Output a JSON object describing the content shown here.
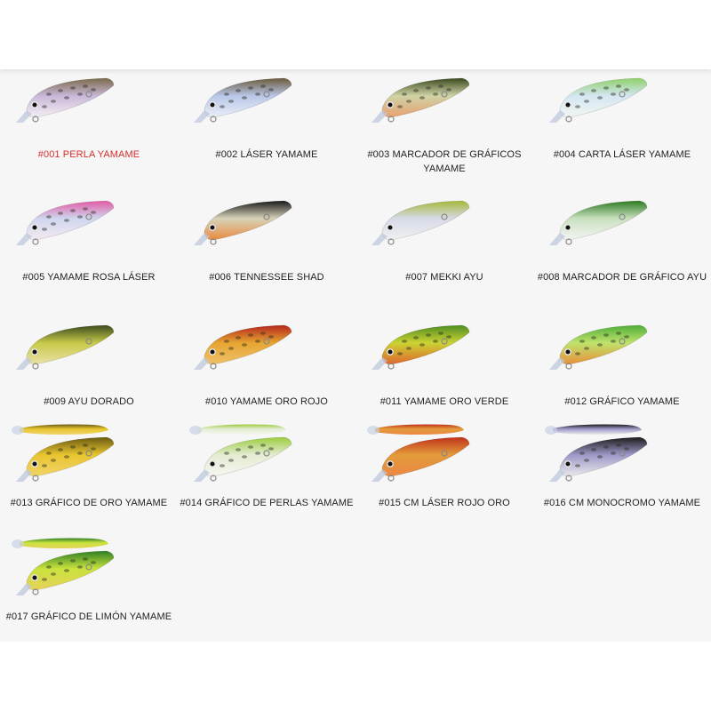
{
  "colors": {
    "active_label": "#d72f2f",
    "label": "#222222",
    "panel_bg": "#f6f6f6"
  },
  "items": [
    {
      "label": "#001 PERLA YAMAME",
      "active": true,
      "top": "#7a6a4a",
      "mid": "#c9b7d8",
      "belly": "#f4eef2",
      "spots": true,
      "rod": false
    },
    {
      "label": "#002 LÁSER YAMAME",
      "active": false,
      "top": "#6b5a3a",
      "mid": "#b8c6e8",
      "belly": "#e9eef6",
      "spots": true,
      "rod": false
    },
    {
      "label": "#003 MARCADOR DE GRÁFICOS YAMAME",
      "active": false,
      "top": "#3a4a1e",
      "mid": "#cfd3a6",
      "belly": "#e8a070",
      "spots": true,
      "rod": false
    },
    {
      "label": "#004 CARTA LÁSER YAMAME",
      "active": false,
      "top": "#8fd06a",
      "mid": "#d4e6f2",
      "belly": "#f2f6f2",
      "spots": true,
      "rod": false
    },
    {
      "label": "#005 YAMAME ROSA LÁSER",
      "active": false,
      "top": "#e35ba6",
      "mid": "#cfd6ee",
      "belly": "#f4eaf0",
      "spots": true,
      "rod": false
    },
    {
      "label": "#006 TENNESSEE SHAD",
      "active": false,
      "top": "#1a1a1a",
      "mid": "#d7d2b8",
      "belly": "#e9893e",
      "spots": false,
      "rod": false
    },
    {
      "label": "#007 MEKKI AYU",
      "active": false,
      "top": "#a7b83a",
      "mid": "#d6dae6",
      "belly": "#f0f0f0",
      "spots": false,
      "rod": false
    },
    {
      "label": "#008 MARCADOR DE GRÁFICO AYU",
      "active": false,
      "top": "#2c7a22",
      "mid": "#c9e0bf",
      "belly": "#f4f4f4",
      "spots": false,
      "rod": false
    },
    {
      "label": "#009 AYU DORADO",
      "active": false,
      "top": "#3b4a1e",
      "mid": "#c7c948",
      "belly": "#e9e2a8",
      "spots": false,
      "rod": false
    },
    {
      "label": "#010 YAMAME ORO ROJO",
      "active": false,
      "top": "#b5271c",
      "mid": "#e6a531",
      "belly": "#f0c06a",
      "spots": true,
      "rod": false
    },
    {
      "label": "#011 YAMAME ORO VERDE",
      "active": false,
      "top": "#4e8d22",
      "mid": "#cbd332",
      "belly": "#e0662f",
      "spots": true,
      "rod": false
    },
    {
      "label": "#012 GRÁFICO YAMAME",
      "active": false,
      "top": "#4fae39",
      "mid": "#bfe36a",
      "belly": "#e98f3c",
      "spots": true,
      "rod": false
    },
    {
      "label": "#013 GRÁFICO DE ORO YAMAME",
      "active": false,
      "top": "#6b5a12",
      "mid": "#e8c52f",
      "belly": "#f0d46a",
      "spots": true,
      "rod": true
    },
    {
      "label": "#014 GRÁFICO DE PERLAS YAMAME",
      "active": false,
      "top": "#9ccc3e",
      "mid": "#e3ecd2",
      "belly": "#f6f6f0",
      "spots": true,
      "rod": true
    },
    {
      "label": "#015 CM LÁSER ROJO ORO",
      "active": false,
      "top": "#c0321c",
      "mid": "#e39b3a",
      "belly": "#e98845",
      "spots": false,
      "rod": true
    },
    {
      "label": "#016 CM MONOCROMO YAMAME",
      "active": false,
      "top": "#1b1b1b",
      "mid": "#9d98c8",
      "belly": "#eaeaea",
      "spots": true,
      "rod": true
    },
    {
      "label": "#017 GRÁFICO DE LIMÓN YAMAME",
      "active": false,
      "top": "#2f7f24",
      "mid": "#c8e23c",
      "belly": "#e8d25a",
      "spots": true,
      "rod": true
    }
  ]
}
